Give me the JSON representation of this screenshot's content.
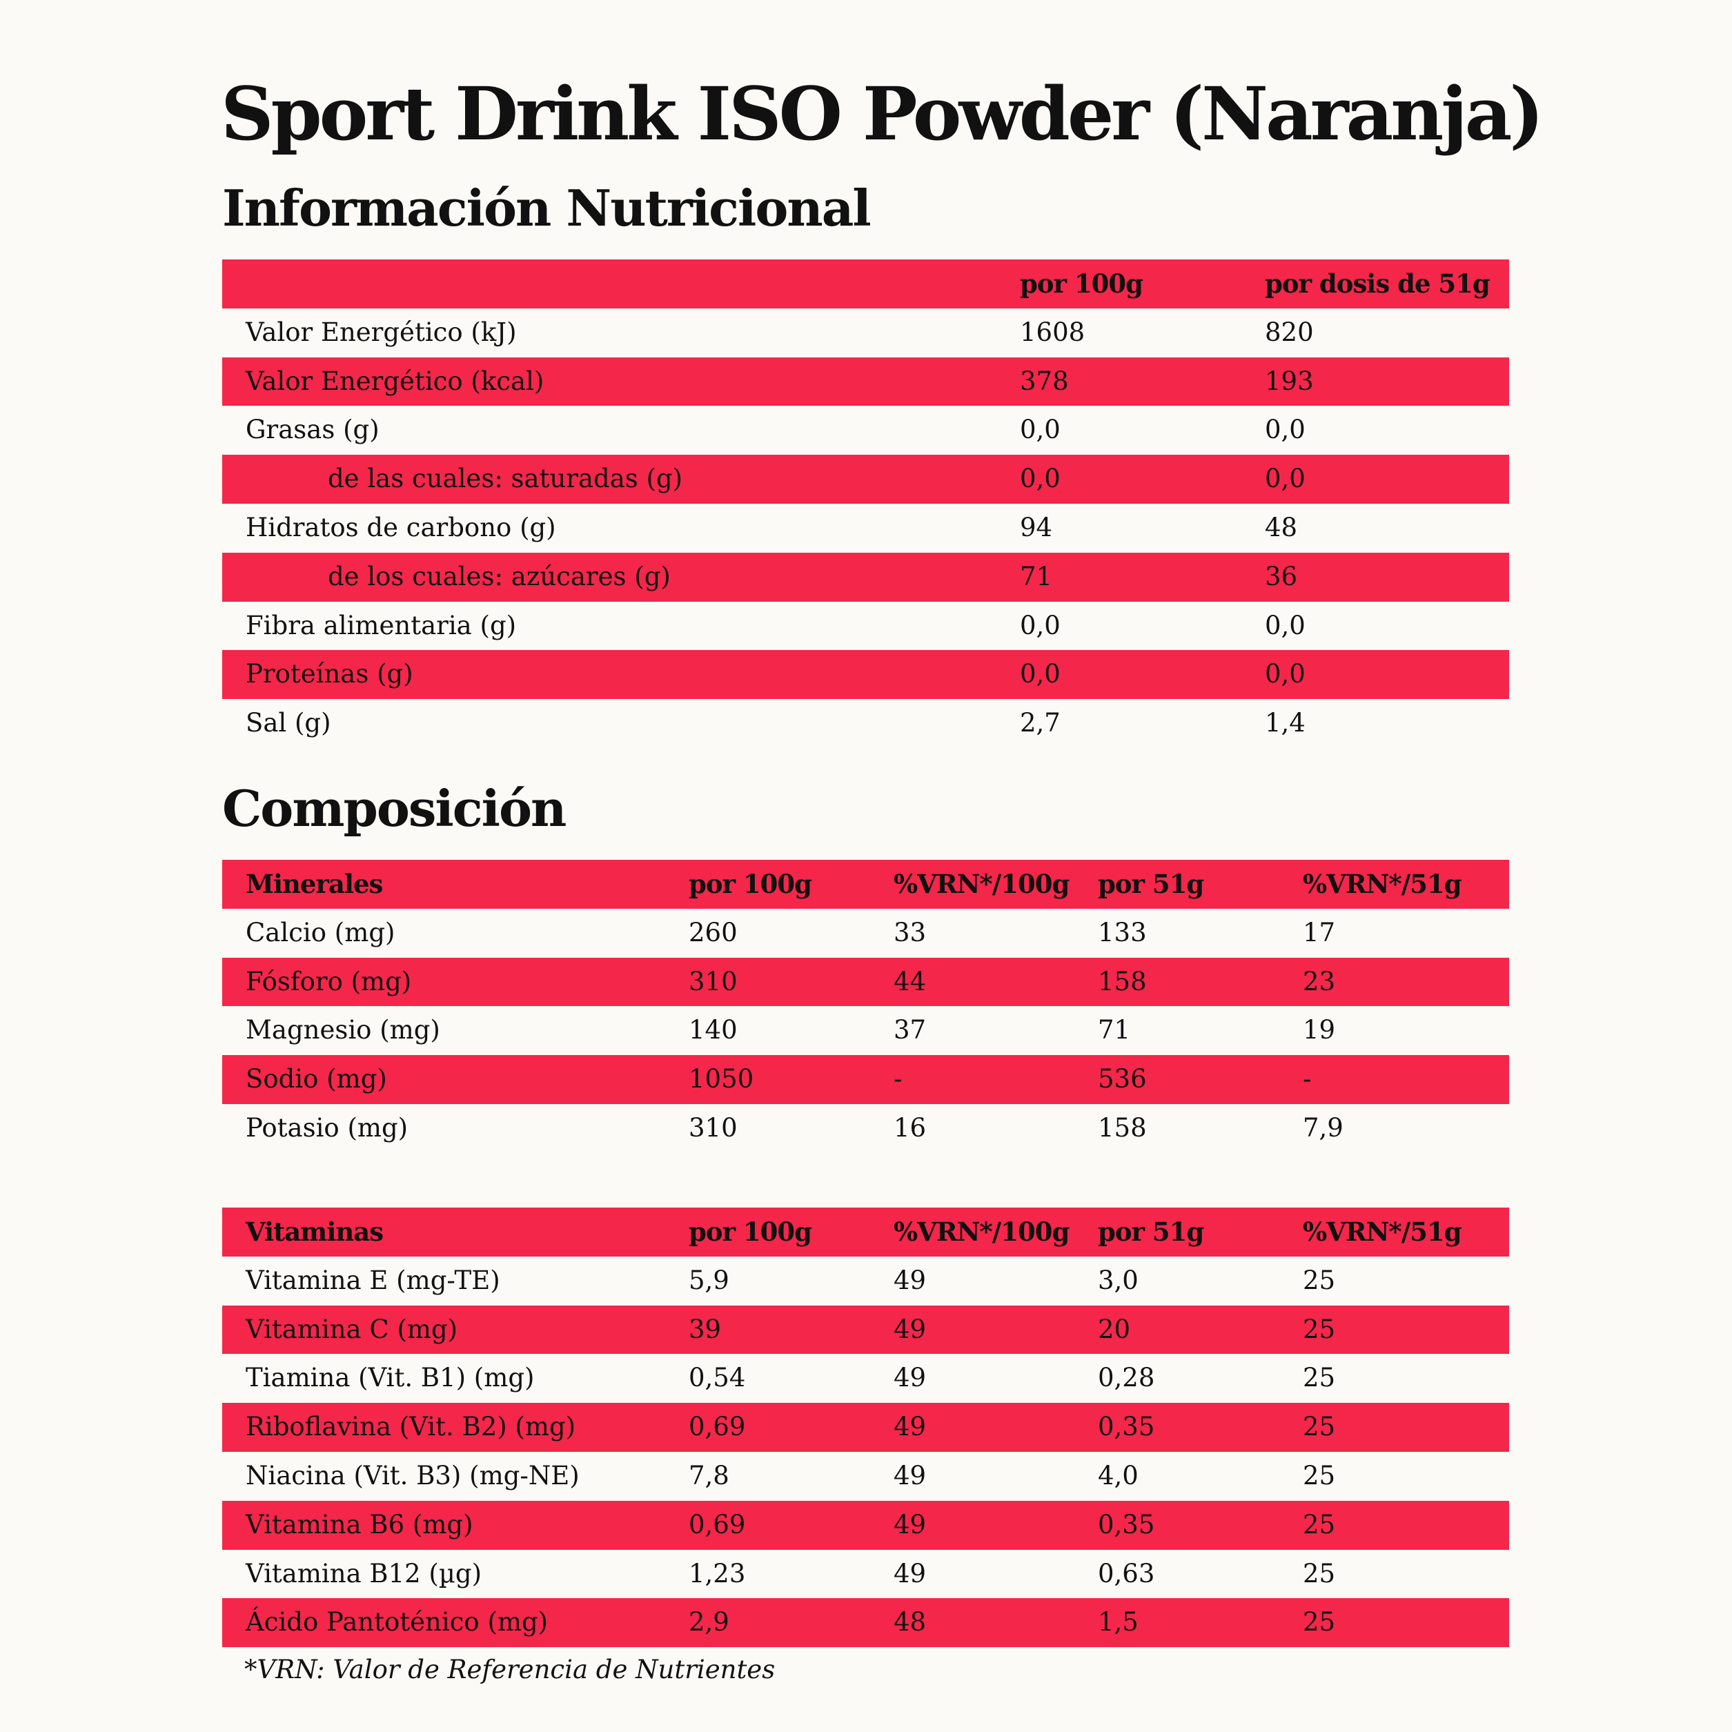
{
  "title": "Sport Drink ISO Powder (Naranja)",
  "nutrition": {
    "heading": "Información Nutricional",
    "columns": [
      "",
      "por 100g",
      "por dosis de 51g"
    ],
    "rows": [
      {
        "label": "Valor Energético (kJ)",
        "per100": "1608",
        "perDose": "820"
      },
      {
        "label": "Valor Energético (kcal)",
        "per100": "378",
        "perDose": "193"
      },
      {
        "label": "Grasas (g)",
        "per100": "0,0",
        "perDose": "0,0"
      },
      {
        "label": "de las cuales: saturadas (g)",
        "per100": "0,0",
        "perDose": "0,0"
      },
      {
        "label": "Hidratos de carbono (g)",
        "per100": "94",
        "perDose": "48"
      },
      {
        "label": "de los cuales: azúcares (g)",
        "per100": "71",
        "perDose": "36"
      },
      {
        "label": "Fibra alimentaria (g)",
        "per100": "0,0",
        "perDose": "0,0"
      },
      {
        "label": "Proteínas (g)",
        "per100": "0,0",
        "perDose": "0,0"
      },
      {
        "label": "Sal (g)",
        "per100": "2,7",
        "perDose": "1,4"
      }
    ]
  },
  "composition": {
    "heading": "Composición",
    "minerals": {
      "columns": [
        "Minerales",
        "por 100g",
        "%VRN*/100g",
        "por 51g",
        "%VRN*/51g"
      ],
      "rows": [
        [
          "Calcio (mg)",
          "260",
          "33",
          "133",
          "17"
        ],
        [
          "Fósforo (mg)",
          "310",
          "44",
          "158",
          "23"
        ],
        [
          "Magnesio (mg)",
          "140",
          "37",
          "71",
          "19"
        ],
        [
          "Sodio (mg)",
          "1050",
          "-",
          "536",
          "-"
        ],
        [
          "Potasio (mg)",
          "310",
          "16",
          "158",
          "7,9"
        ]
      ]
    },
    "vitamins": {
      "columns": [
        "Vitaminas",
        "por 100g",
        "%VRN*/100g",
        "por 51g",
        "%VRN*/51g"
      ],
      "rows": [
        [
          "Vitamina E (mg-TE)",
          "5,9",
          "49",
          "3,0",
          "25"
        ],
        [
          "Vitamina C (mg)",
          "39",
          "49",
          "20",
          "25"
        ],
        [
          "Tiamina (Vit. B1) (mg)",
          "0,54",
          "49",
          "0,28",
          "25"
        ],
        [
          "Riboflavina (Vit. B2) (mg)",
          "0,69",
          "49",
          "0,35",
          "25"
        ],
        [
          "Niacina (Vit. B3) (mg-NE)",
          "7,8",
          "49",
          "4,0",
          "25"
        ],
        [
          "Vitamina B6 (mg)",
          "0,69",
          "49",
          "0,35",
          "25"
        ],
        [
          "Vitamina B12 (µg)",
          "1,23",
          "49",
          "0,63",
          "25"
        ],
        [
          "Ácido Pantoténico (mg)",
          "2,9",
          "48",
          "1,5",
          "25"
        ]
      ]
    }
  },
  "footnote": "*VRN: Valor de Referencia de Nutrientes",
  "colors": {
    "accent_red": "#f4264a",
    "background": "#fbfaf6",
    "text": "#111111"
  }
}
